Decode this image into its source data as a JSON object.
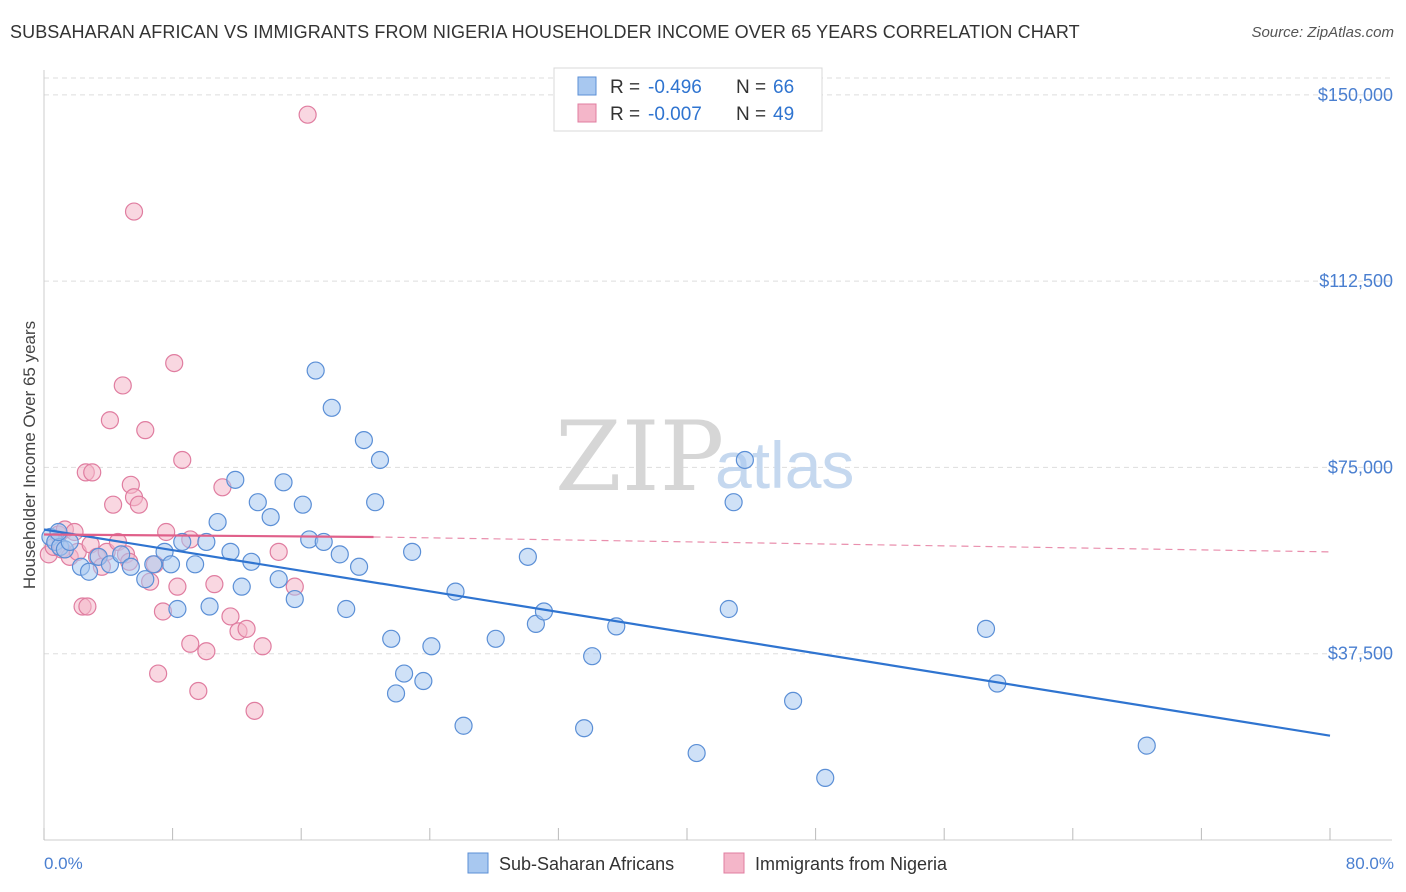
{
  "title": "SUBSAHARAN AFRICAN VS IMMIGRANTS FROM NIGERIA HOUSEHOLDER INCOME OVER 65 YEARS CORRELATION CHART",
  "source": "Source: ZipAtlas.com",
  "watermark": {
    "zip": "ZIP",
    "atlas": "atlas"
  },
  "legend_box": [
    {
      "r_label": "R =",
      "r_value": "-0.496",
      "n_label": "N =",
      "n_value": "66"
    },
    {
      "r_label": "R =",
      "r_value": "-0.007",
      "n_label": "N =",
      "n_value": "49"
    }
  ],
  "chart_data": {
    "type": "scatter",
    "ylabel": "Householder Income Over 65 years",
    "xlim": [
      0,
      80
    ],
    "ylim": [
      0,
      155000
    ],
    "x_tick_labels": [
      "0.0%",
      "80.0%"
    ],
    "y_ticks": [
      37500,
      75000,
      112500,
      150000
    ],
    "y_tick_labels": [
      "$37,500",
      "$75,000",
      "$112,500",
      "$150,000"
    ],
    "grid": true,
    "legend_position": "bottom",
    "colors": {
      "blue_fill": "#a8c8f0",
      "blue_stroke": "#5b8fd6",
      "blue_line": "#2f74d0",
      "pink_fill": "#f4b6c9",
      "pink_stroke": "#e07da0",
      "pink_line": "#e0608a",
      "tick_label": "#4a7fd0",
      "grid": "#dddddd"
    },
    "series": [
      {
        "name": "Sub-Saharan Africans",
        "trend": {
          "x": [
            0,
            80
          ],
          "y": [
            62500,
            21000
          ]
        },
        "points": [
          [
            0.4,
            61000
          ],
          [
            0.7,
            60000
          ],
          [
            1.0,
            59000
          ],
          [
            1.3,
            58500
          ],
          [
            1.6,
            60000
          ],
          [
            0.9,
            62000
          ],
          [
            2.3,
            55000
          ],
          [
            2.8,
            54000
          ],
          [
            3.4,
            57000
          ],
          [
            4.1,
            55500
          ],
          [
            4.8,
            57500
          ],
          [
            5.4,
            55000
          ],
          [
            6.3,
            52500
          ],
          [
            6.8,
            55500
          ],
          [
            7.5,
            58000
          ],
          [
            7.9,
            55500
          ],
          [
            8.3,
            46500
          ],
          [
            8.6,
            60000
          ],
          [
            9.4,
            55500
          ],
          [
            10.1,
            60000
          ],
          [
            10.3,
            47000
          ],
          [
            10.8,
            64000
          ],
          [
            11.6,
            58000
          ],
          [
            11.9,
            72500
          ],
          [
            12.3,
            51000
          ],
          [
            12.9,
            56000
          ],
          [
            13.3,
            68000
          ],
          [
            14.1,
            65000
          ],
          [
            14.6,
            52500
          ],
          [
            14.9,
            72000
          ],
          [
            15.6,
            48500
          ],
          [
            16.1,
            67500
          ],
          [
            16.5,
            60500
          ],
          [
            16.9,
            94500
          ],
          [
            17.4,
            60000
          ],
          [
            17.9,
            87000
          ],
          [
            18.4,
            57500
          ],
          [
            18.8,
            46500
          ],
          [
            19.6,
            55000
          ],
          [
            19.9,
            80500
          ],
          [
            20.6,
            68000
          ],
          [
            20.9,
            76500
          ],
          [
            21.6,
            40500
          ],
          [
            21.9,
            29500
          ],
          [
            22.4,
            33500
          ],
          [
            22.9,
            58000
          ],
          [
            23.6,
            32000
          ],
          [
            24.1,
            39000
          ],
          [
            25.6,
            50000
          ],
          [
            26.1,
            23000
          ],
          [
            28.1,
            40500
          ],
          [
            30.1,
            57000
          ],
          [
            30.6,
            43500
          ],
          [
            31.1,
            46000
          ],
          [
            33.6,
            22500
          ],
          [
            34.1,
            37000
          ],
          [
            35.6,
            43000
          ],
          [
            40.6,
            17500
          ],
          [
            42.6,
            46500
          ],
          [
            42.9,
            68000
          ],
          [
            43.6,
            76500
          ],
          [
            46.6,
            28000
          ],
          [
            48.6,
            12500
          ],
          [
            58.6,
            42500
          ],
          [
            59.3,
            31500
          ],
          [
            68.6,
            19000
          ]
        ]
      },
      {
        "name": "Immigrants from Nigeria",
        "trend": {
          "x": [
            0,
            20.5
          ],
          "y": [
            61500,
            61000
          ]
        },
        "trend_ext": {
          "x": [
            20.5,
            80
          ],
          "y": [
            61000,
            58000
          ]
        },
        "points": [
          [
            0.3,
            57500
          ],
          [
            0.6,
            59000
          ],
          [
            0.9,
            61500
          ],
          [
            1.1,
            58500
          ],
          [
            1.3,
            62500
          ],
          [
            1.6,
            57000
          ],
          [
            1.9,
            62000
          ],
          [
            2.1,
            58000
          ],
          [
            2.4,
            47000
          ],
          [
            2.6,
            74000
          ],
          [
            2.7,
            47000
          ],
          [
            2.9,
            59500
          ],
          [
            3.0,
            74000
          ],
          [
            3.3,
            57000
          ],
          [
            3.6,
            55000
          ],
          [
            3.9,
            58000
          ],
          [
            4.1,
            84500
          ],
          [
            4.3,
            67500
          ],
          [
            4.6,
            60000
          ],
          [
            4.9,
            91500
          ],
          [
            5.1,
            57500
          ],
          [
            5.3,
            56000
          ],
          [
            5.4,
            71500
          ],
          [
            5.6,
            69000
          ],
          [
            5.9,
            67500
          ],
          [
            6.3,
            82500
          ],
          [
            6.6,
            52000
          ],
          [
            6.9,
            55500
          ],
          [
            7.1,
            33500
          ],
          [
            7.4,
            46000
          ],
          [
            7.6,
            62000
          ],
          [
            8.1,
            96000
          ],
          [
            8.3,
            51000
          ],
          [
            8.6,
            76500
          ],
          [
            9.1,
            60500
          ],
          [
            9.6,
            30000
          ],
          [
            10.1,
            38000
          ],
          [
            10.6,
            51500
          ],
          [
            11.1,
            71000
          ],
          [
            11.6,
            45000
          ],
          [
            12.1,
            42000
          ],
          [
            12.6,
            42500
          ],
          [
            13.1,
            26000
          ],
          [
            13.6,
            39000
          ],
          [
            14.6,
            58000
          ],
          [
            15.6,
            51000
          ],
          [
            16.4,
            146000
          ],
          [
            5.6,
            126500
          ],
          [
            9.1,
            39500
          ]
        ]
      }
    ]
  }
}
